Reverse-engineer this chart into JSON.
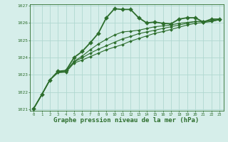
{
  "background_color": "#d6eeea",
  "grid_color": "#b0d8d0",
  "line_color": "#2d6e2d",
  "marker_color": "#2d6e2d",
  "xlabel": "Graphe pression niveau de la mer (hPa)",
  "xlabel_fontsize": 6.5,
  "ylim": [
    1021,
    1027
  ],
  "xlim": [
    -0.5,
    23.5
  ],
  "yticks": [
    1021,
    1022,
    1023,
    1024,
    1025,
    1026,
    1027
  ],
  "xticks": [
    0,
    1,
    2,
    3,
    4,
    5,
    6,
    7,
    8,
    9,
    10,
    11,
    12,
    13,
    14,
    15,
    16,
    17,
    18,
    19,
    20,
    21,
    22,
    23
  ],
  "series": [
    {
      "y": [
        1021.05,
        1021.85,
        1022.7,
        1023.2,
        1023.25,
        1024.0,
        1024.35,
        1024.85,
        1025.4,
        1026.3,
        1026.82,
        1026.78,
        1026.78,
        1026.3,
        1026.0,
        1026.05,
        1025.98,
        1025.95,
        1026.22,
        1026.3,
        1026.3,
        1026.05,
        1026.22,
        1026.22
      ],
      "lw": 1.3,
      "ms": 3.0,
      "marker": "D"
    },
    {
      "y": [
        1021.05,
        1021.85,
        1022.7,
        1023.18,
        1023.22,
        1023.78,
        1024.08,
        1024.45,
        1024.78,
        1025.05,
        1025.3,
        1025.48,
        1025.52,
        1025.58,
        1025.68,
        1025.78,
        1025.83,
        1025.88,
        1025.98,
        1026.03,
        1026.08,
        1026.08,
        1026.12,
        1026.18
      ],
      "lw": 0.8,
      "ms": 2.0,
      "marker": "D"
    },
    {
      "y": [
        1021.05,
        1021.85,
        1022.7,
        1023.15,
        1023.18,
        1023.75,
        1023.98,
        1024.25,
        1024.48,
        1024.68,
        1024.88,
        1025.08,
        1025.22,
        1025.38,
        1025.48,
        1025.58,
        1025.68,
        1025.78,
        1025.88,
        1025.98,
        1026.08,
        1026.08,
        1026.12,
        1026.18
      ],
      "lw": 0.8,
      "ms": 2.0,
      "marker": "D"
    },
    {
      "y": [
        1021.05,
        1021.85,
        1022.7,
        1023.12,
        1023.15,
        1023.68,
        1023.85,
        1024.05,
        1024.25,
        1024.45,
        1024.6,
        1024.75,
        1024.95,
        1025.1,
        1025.25,
        1025.4,
        1025.5,
        1025.62,
        1025.75,
        1025.88,
        1025.98,
        1026.02,
        1026.08,
        1026.18
      ],
      "lw": 0.8,
      "ms": 2.0,
      "marker": "D"
    }
  ]
}
